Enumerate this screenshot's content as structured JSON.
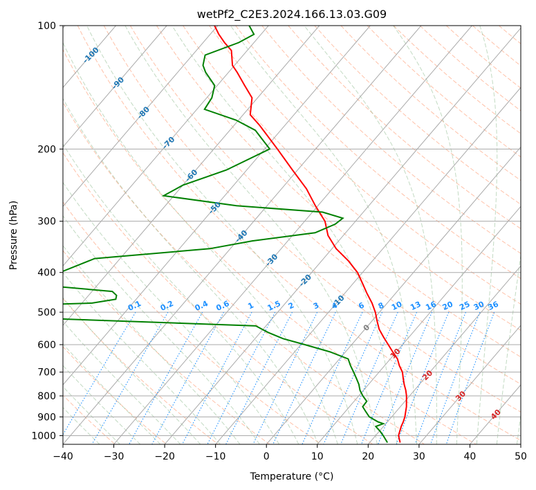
{
  "chart_data": {
    "type": "skew-t",
    "title": "wetPf2_C2E3.2024.166.13.03.G09",
    "xlabel": "Temperature (°C)",
    "ylabel": "Pressure (hPa)",
    "xlim": [
      -40,
      50
    ],
    "ylim": [
      1050,
      100
    ],
    "x_ticks": [
      -40,
      -30,
      -20,
      -10,
      0,
      10,
      20,
      30,
      40,
      50
    ],
    "x_tick_labels": [
      "−40",
      "−30",
      "−20",
      "−10",
      "0",
      "10",
      "20",
      "30",
      "40",
      "50"
    ],
    "y_ticks": [
      100,
      200,
      300,
      400,
      500,
      600,
      700,
      800,
      900,
      1000
    ],
    "y_tick_labels": [
      "100",
      "200",
      "300",
      "400",
      "500",
      "600",
      "700",
      "800",
      "900",
      "1000"
    ],
    "isotherm_labels": [
      {
        "label": "-100",
        "p": 118
      },
      {
        "label": "-90",
        "p": 138
      },
      {
        "label": "-80",
        "p": 163
      },
      {
        "label": "-70",
        "p": 193
      },
      {
        "label": "-60",
        "p": 232
      },
      {
        "label": "-50",
        "p": 278
      },
      {
        "label": "-40",
        "p": 326
      },
      {
        "label": "-30",
        "p": 373
      },
      {
        "label": "-20",
        "p": 418
      },
      {
        "label": "-10",
        "p": 470
      },
      {
        "label": "0",
        "p": 545
      },
      {
        "label": "10",
        "p": 630
      },
      {
        "label": "20",
        "p": 712
      },
      {
        "label": "30",
        "p": 800
      },
      {
        "label": "40",
        "p": 887
      }
    ],
    "mixing_ratio_labels": [
      "0.1",
      "0.2",
      "0.4",
      "0.6",
      "1",
      "1.5",
      "2",
      "3",
      "4",
      "6",
      "8",
      "10",
      "13",
      "16",
      "20",
      "25",
      "30",
      "36"
    ],
    "mixing_ratio_values": [
      0.1,
      0.2,
      0.4,
      0.6,
      1,
      1.5,
      2,
      3,
      4,
      6,
      8,
      10,
      13,
      16,
      20,
      25,
      30,
      36
    ],
    "series": [
      {
        "name": "Temperature",
        "color": "#ff0000",
        "points": [
          {
            "p": 1040,
            "t": 26.0
          },
          {
            "p": 1013,
            "t": 25.0
          },
          {
            "p": 1000,
            "t": 24.5
          },
          {
            "p": 975,
            "t": 24.0
          },
          {
            "p": 950,
            "t": 23.5
          },
          {
            "p": 925,
            "t": 23.1
          },
          {
            "p": 900,
            "t": 22.6
          },
          {
            "p": 875,
            "t": 21.9
          },
          {
            "p": 850,
            "t": 21.2
          },
          {
            "p": 825,
            "t": 20.3
          },
          {
            "p": 800,
            "t": 19.4
          },
          {
            "p": 775,
            "t": 18.3
          },
          {
            "p": 750,
            "t": 17.0
          },
          {
            "p": 725,
            "t": 15.8
          },
          {
            "p": 700,
            "t": 14.6
          },
          {
            "p": 675,
            "t": 12.9
          },
          {
            "p": 650,
            "t": 11.4
          },
          {
            "p": 625,
            "t": 9.3
          },
          {
            "p": 600,
            "t": 7.2
          },
          {
            "p": 575,
            "t": 5.0
          },
          {
            "p": 550,
            "t": 2.8
          },
          {
            "p": 525,
            "t": 1.0
          },
          {
            "p": 500,
            "t": -0.8
          },
          {
            "p": 475,
            "t": -3.0
          },
          {
            "p": 450,
            "t": -5.6
          },
          {
            "p": 425,
            "t": -8.2
          },
          {
            "p": 400,
            "t": -11.0
          },
          {
            "p": 375,
            "t": -14.7
          },
          {
            "p": 350,
            "t": -19.2
          },
          {
            "p": 325,
            "t": -23.0
          },
          {
            "p": 300,
            "t": -26.0
          },
          {
            "p": 275,
            "t": -30.5
          },
          {
            "p": 250,
            "t": -35.1
          },
          {
            "p": 225,
            "t": -41.0
          },
          {
            "p": 200,
            "t": -47.5
          },
          {
            "p": 175,
            "t": -55.0
          },
          {
            "p": 165,
            "t": -58.6
          },
          {
            "p": 150,
            "t": -61.1
          },
          {
            "p": 140,
            "t": -64.6
          },
          {
            "p": 130,
            "t": -68.3
          },
          {
            "p": 125,
            "t": -70.4
          },
          {
            "p": 115,
            "t": -73.1
          },
          {
            "p": 110,
            "t": -75.8
          },
          {
            "p": 105,
            "t": -78.3
          },
          {
            "p": 100,
            "t": -80.6
          }
        ]
      },
      {
        "name": "Dewpoint",
        "color": "#008000",
        "points": [
          {
            "p": 1040,
            "t": 23.5
          },
          {
            "p": 1000,
            "t": 21.5
          },
          {
            "p": 975,
            "t": 20.1
          },
          {
            "p": 950,
            "t": 18.5
          },
          {
            "p": 935,
            "t": 19.5
          },
          {
            "p": 925,
            "t": 18.1
          },
          {
            "p": 900,
            "t": 15.6
          },
          {
            "p": 875,
            "t": 14.1
          },
          {
            "p": 850,
            "t": 12.6
          },
          {
            "p": 825,
            "t": 12.5
          },
          {
            "p": 800,
            "t": 10.8
          },
          {
            "p": 775,
            "t": 9.3
          },
          {
            "p": 750,
            "t": 8.1
          },
          {
            "p": 725,
            "t": 6.6
          },
          {
            "p": 700,
            "t": 5.0
          },
          {
            "p": 675,
            "t": 3.3
          },
          {
            "p": 650,
            "t": 1.7
          },
          {
            "p": 625,
            "t": -3.0
          },
          {
            "p": 600,
            "t": -9.2
          },
          {
            "p": 580,
            "t": -14.5
          },
          {
            "p": 560,
            "t": -18.5
          },
          {
            "p": 540,
            "t": -22.0
          },
          {
            "p": 520,
            "t": -60.0
          },
          {
            "p": 505,
            "t": -82.0
          },
          {
            "p": 495,
            "t": -82.5
          },
          {
            "p": 485,
            "t": -80.0
          },
          {
            "p": 475,
            "t": -58.0
          },
          {
            "p": 465,
            "t": -54.0
          },
          {
            "p": 455,
            "t": -54.5
          },
          {
            "p": 445,
            "t": -56.0
          },
          {
            "p": 430,
            "t": -70.5
          },
          {
            "p": 400,
            "t": -69.5
          },
          {
            "p": 370,
            "t": -65.0
          },
          {
            "p": 350,
            "t": -44.0
          },
          {
            "p": 335,
            "t": -37.0
          },
          {
            "p": 320,
            "t": -26.0
          },
          {
            "p": 305,
            "t": -23.5
          },
          {
            "p": 295,
            "t": -23.0
          },
          {
            "p": 285,
            "t": -28.0
          },
          {
            "p": 275,
            "t": -46.0
          },
          {
            "p": 260,
            "t": -62.0
          },
          {
            "p": 245,
            "t": -60.0
          },
          {
            "p": 225,
            "t": -54.0
          },
          {
            "p": 200,
            "t": -49.0
          },
          {
            "p": 180,
            "t": -55.0
          },
          {
            "p": 170,
            "t": -60.5
          },
          {
            "p": 160,
            "t": -68.5
          },
          {
            "p": 150,
            "t": -69.0
          },
          {
            "p": 140,
            "t": -70.5
          },
          {
            "p": 130,
            "t": -74.5
          },
          {
            "p": 125,
            "t": -76.2
          },
          {
            "p": 118,
            "t": -77.5
          },
          {
            "p": 110,
            "t": -73.0
          },
          {
            "p": 105,
            "t": -71.4
          },
          {
            "p": 100,
            "t": -73.8
          }
        ]
      }
    ]
  },
  "colors": {
    "temperature": "#ff0000",
    "dewpoint": "#008000",
    "isotherm": "#aaaaaa",
    "isotherm_label": "#1f77b4",
    "dry_adiabat": "#ffa07a",
    "moist_adiabat": "#8fbc8f",
    "mixing_ratio": "#1e90ff",
    "heated_label": "#d62728",
    "zero_label": "#808080"
  }
}
